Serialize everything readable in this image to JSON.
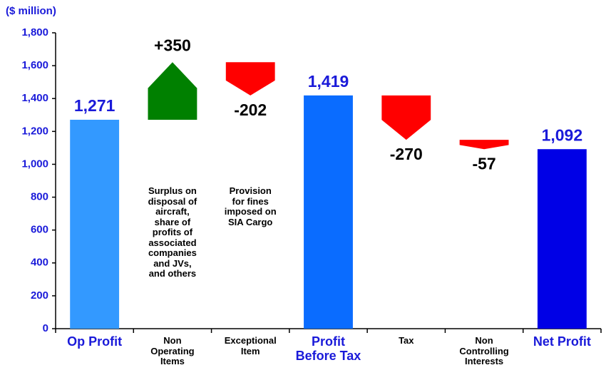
{
  "chart_data": {
    "type": "waterfall",
    "unit_label": "($ million)",
    "categories": [
      "Op Profit",
      "Non\nOperating\nItems",
      "Exceptional\nItem",
      "Profit\nBefore Tax",
      "Tax",
      "Non\nControlling\nInterests",
      "Net Profit"
    ],
    "values": [
      1271,
      350,
      -202,
      1419,
      -270,
      -57,
      1092
    ],
    "value_labels": [
      "1,271",
      "+350",
      "-202",
      "1,419",
      "-270",
      "-57",
      "1,092"
    ],
    "totals": [
      true,
      false,
      false,
      true,
      false,
      false,
      true
    ],
    "colors": [
      "#3399ff",
      "#008000",
      "#ff0000",
      "#0a6cff",
      "#ff0000",
      "#ff0000",
      "#0000e6"
    ],
    "annotations": [
      {
        "category": "Non\nOperating\nItems",
        "text": "Surplus on\ndisposal of\naircraft,\nshare of\nprofits of\nassociated\ncompanies\nand JVs,\nand others"
      },
      {
        "category": "Exceptional\nItem",
        "text": "Provision\nfor fines\nimposed on\nSIA Cargo"
      }
    ],
    "ylim": [
      0,
      1800
    ],
    "yticks": [
      0,
      200,
      400,
      600,
      800,
      {
        "value": 1000,
        "label": "1,000"
      },
      {
        "value": 1200,
        "label": "1,200"
      },
      {
        "value": 1400,
        "label": "1,400"
      },
      {
        "value": 1600,
        "label": "1,600"
      },
      {
        "value": 1800,
        "label": "1,800"
      }
    ]
  }
}
